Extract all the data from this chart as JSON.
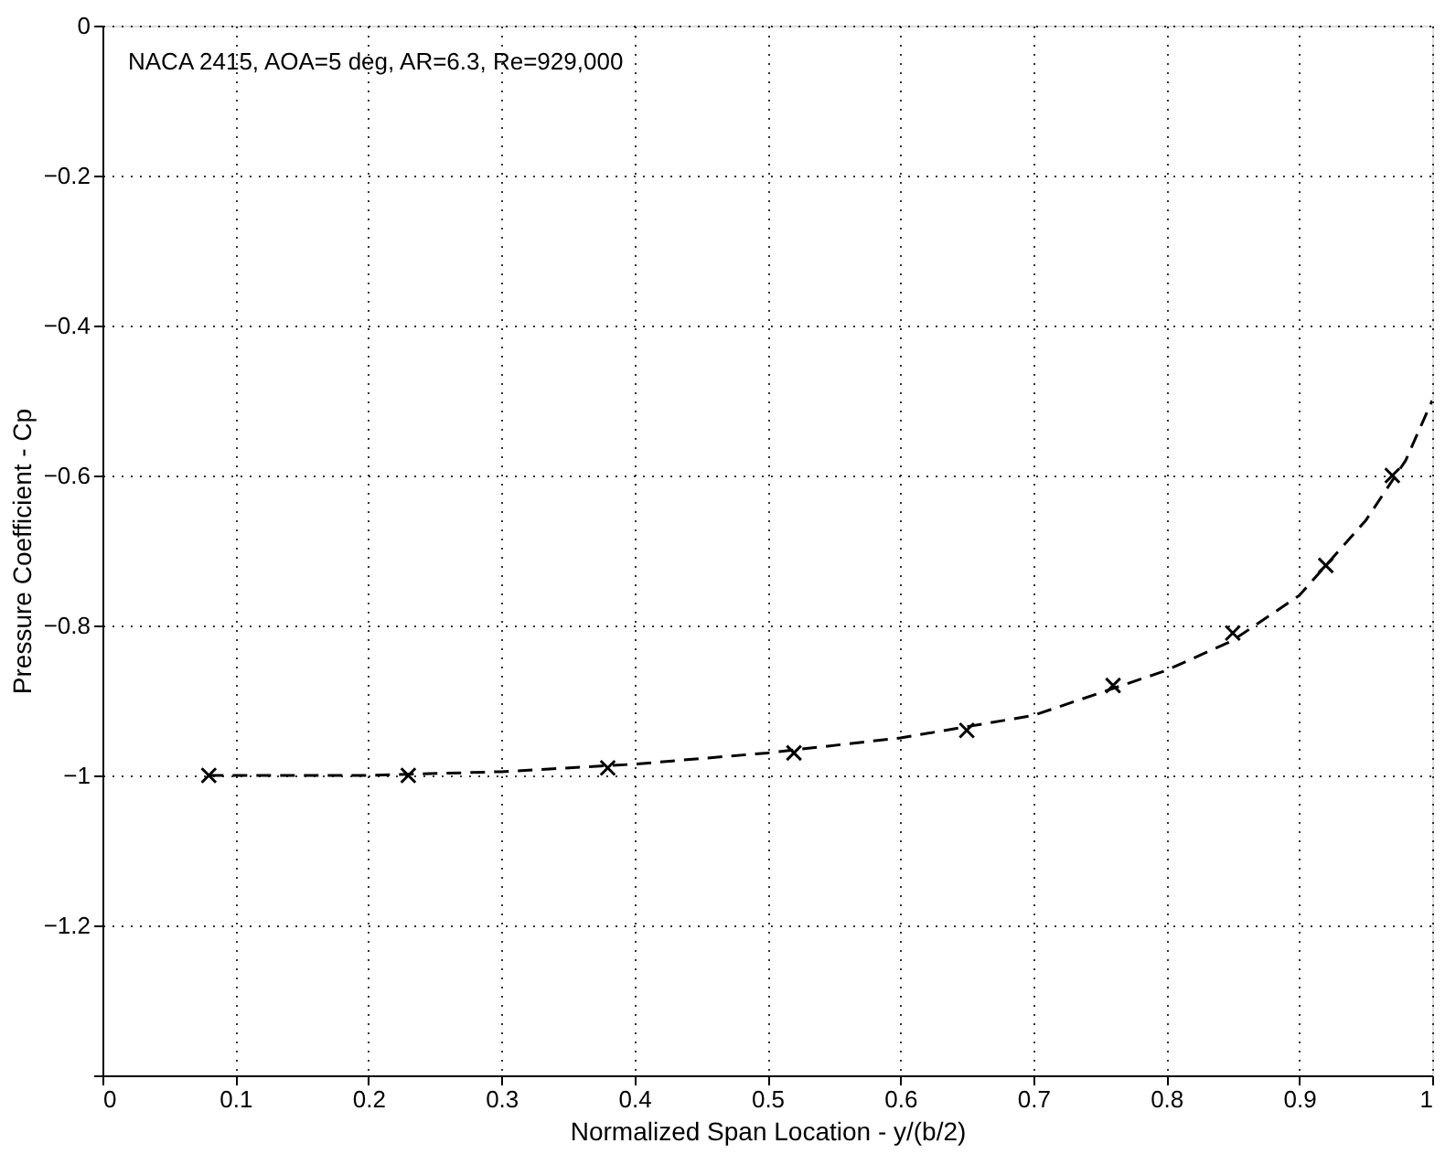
{
  "chart_data": {
    "type": "line",
    "xlabel": "Normalized Span Location - y/(b/2)",
    "ylabel": "Pressure Coefficient - Cp",
    "annotations": [
      "NACA 2415, AOA=5 deg, AR=6.3, Re=929,000"
    ],
    "xlim": [
      0,
      1
    ],
    "xticks": [
      0,
      0.1,
      0.2,
      0.3,
      0.4,
      0.5,
      0.6,
      0.7,
      0.8,
      0.9,
      1
    ],
    "ylim": [
      -1.4,
      0
    ],
    "yticks": [
      0,
      -0.2,
      -0.4,
      -0.6,
      -0.8,
      -1,
      -1.2,
      {
        "value": -1.4,
        "label": null
      }
    ],
    "grid": true,
    "series": [
      {
        "line_style": "dashed",
        "marker": "none",
        "color": "#000000",
        "x": [
          0.08,
          0.2,
          0.3,
          0.4,
          0.5,
          0.6,
          0.7,
          0.8,
          0.85,
          0.9,
          0.95,
          0.98,
          1.0
        ],
        "values": [
          -1.0,
          -1.0,
          -0.995,
          -0.985,
          -0.97,
          -0.95,
          -0.92,
          -0.86,
          -0.82,
          -0.76,
          -0.66,
          -0.58,
          -0.5
        ]
      },
      {
        "type": "scatter",
        "marker": "cross",
        "color": "#000000",
        "x": [
          0.08,
          0.23,
          0.38,
          0.52,
          0.65,
          0.76,
          0.85,
          0.92,
          0.97
        ],
        "values": [
          -1.0,
          -1.0,
          -0.99,
          -0.97,
          -0.94,
          -0.88,
          -0.81,
          -0.72,
          -0.6
        ]
      }
    ]
  }
}
